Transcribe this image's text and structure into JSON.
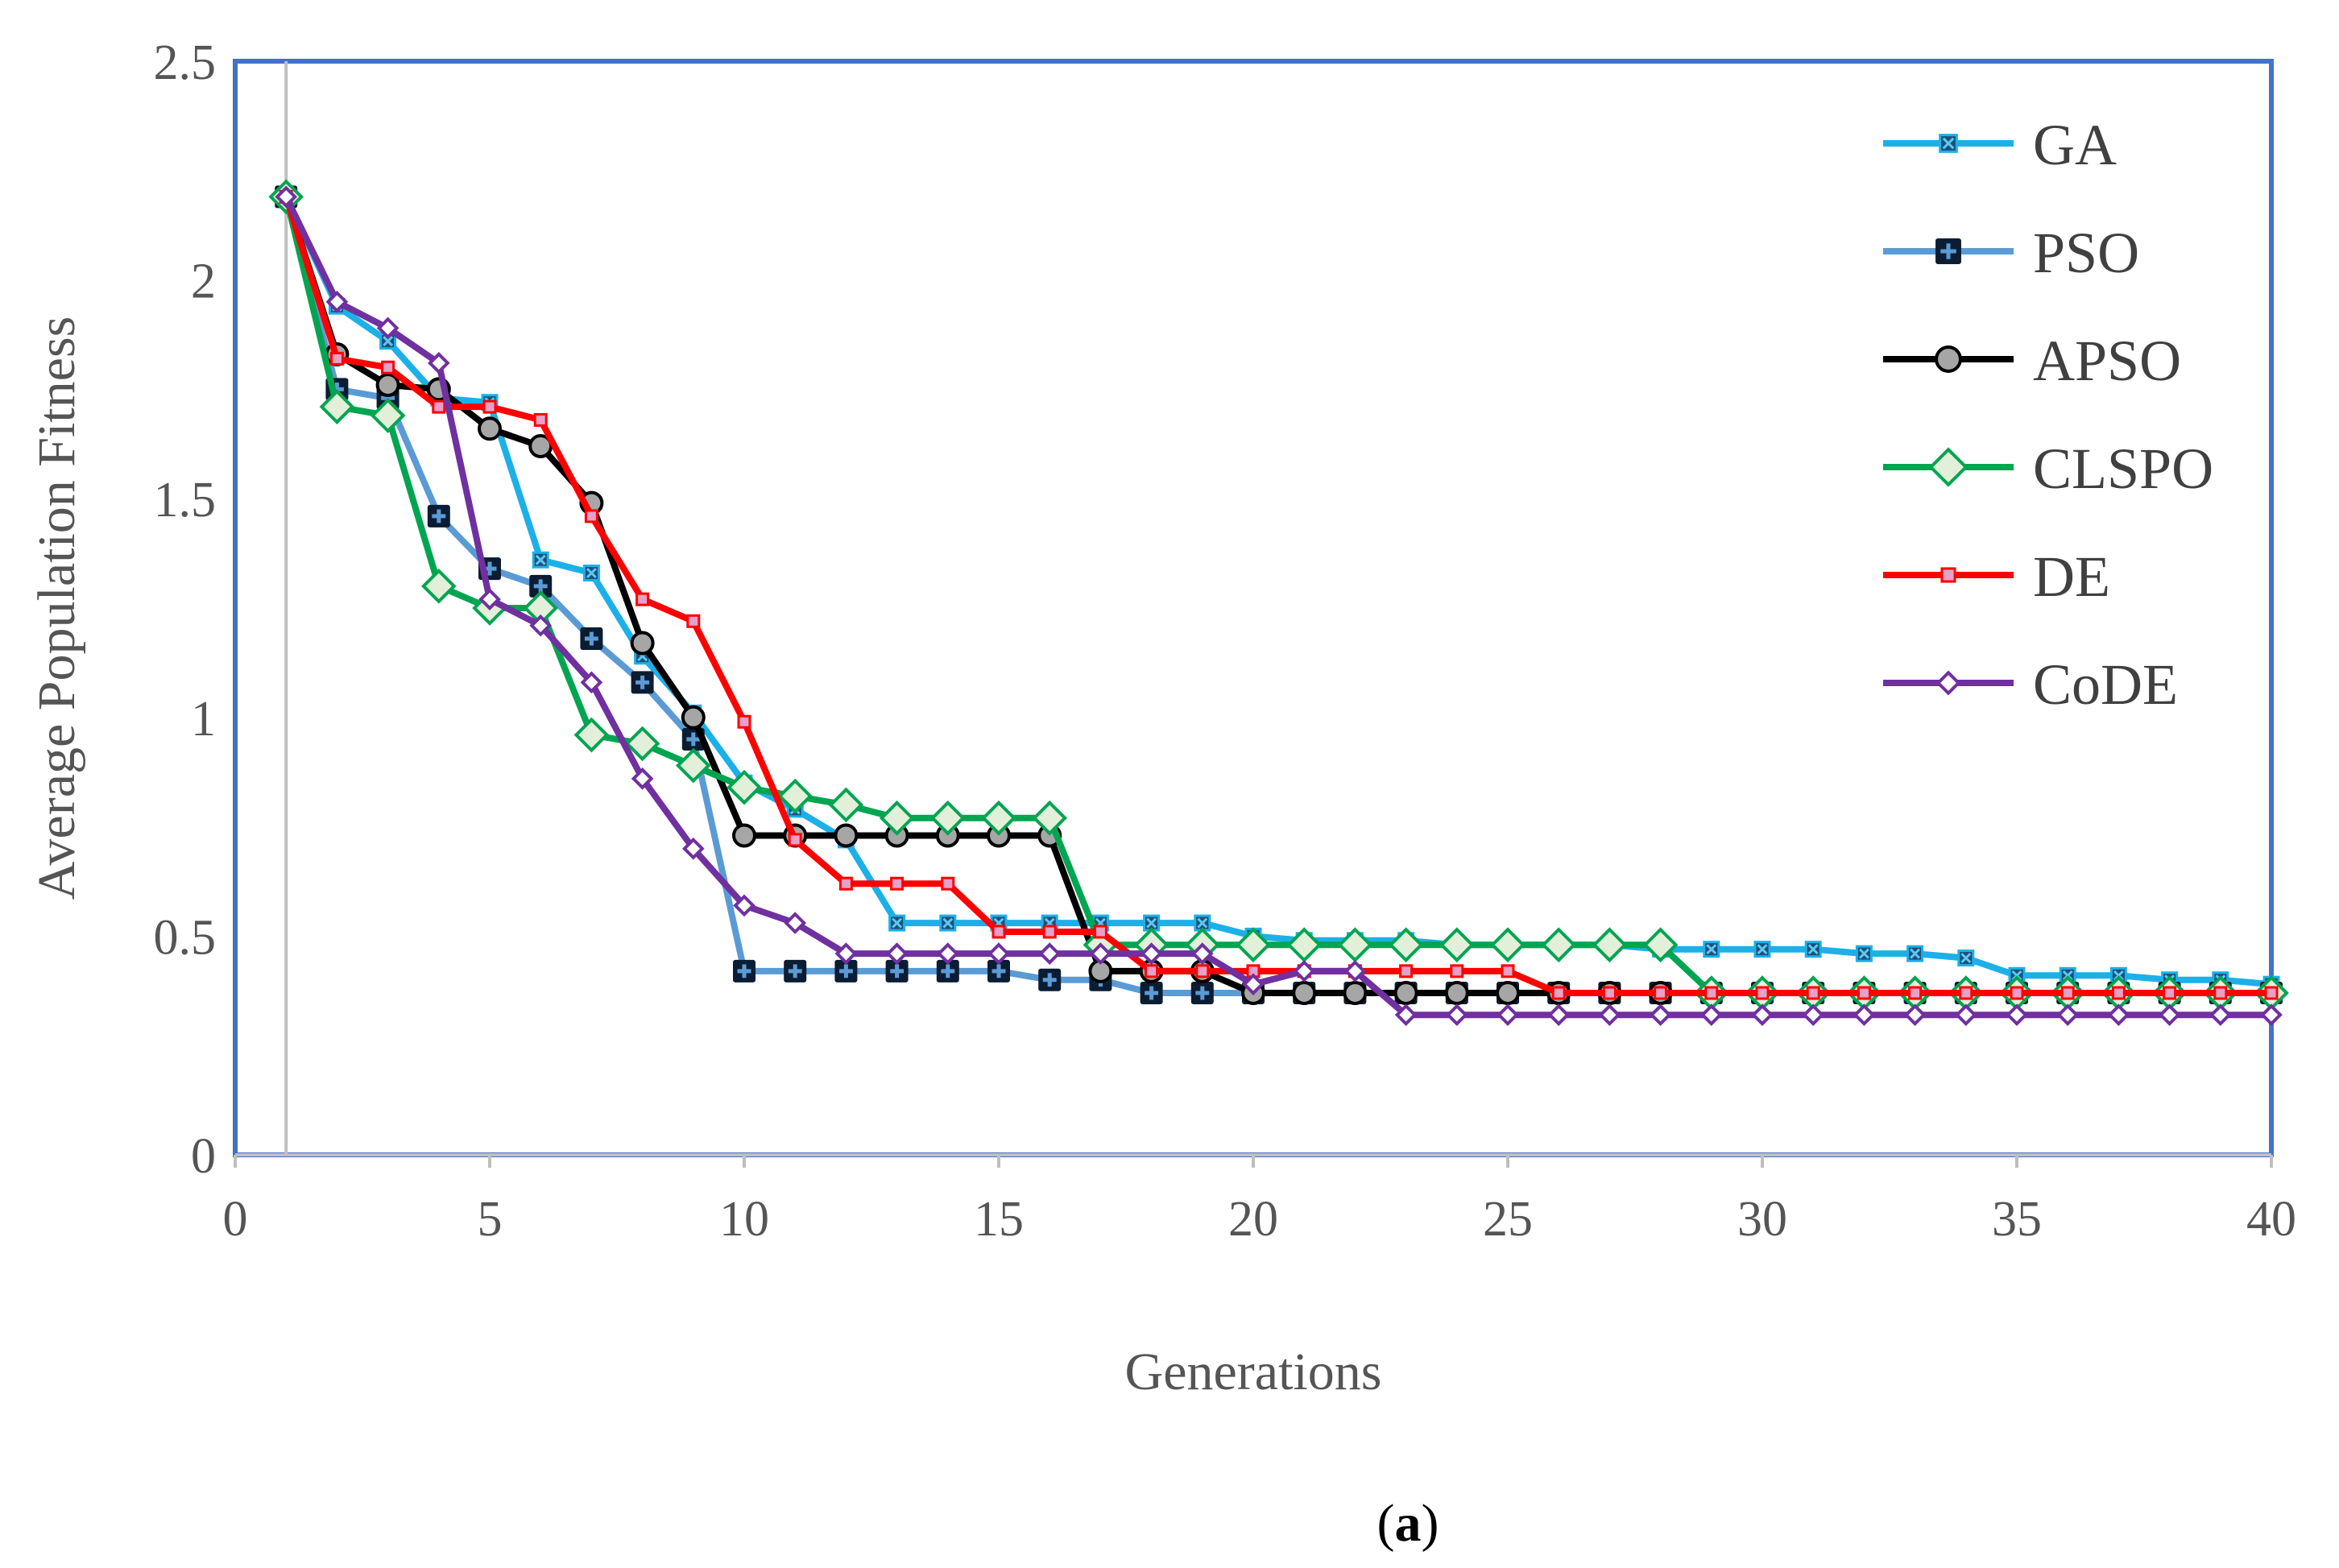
{
  "chart_data": {
    "type": "line",
    "title": "",
    "xlabel": "Generations",
    "ylabel": "Average Population Fitness",
    "xlim": [
      0,
      40
    ],
    "ylim": [
      0,
      2.5
    ],
    "xticks": [
      "0",
      "5",
      "10",
      "15",
      "20",
      "25",
      "30",
      "35",
      "40"
    ],
    "yticks": [
      "0",
      "0.5",
      "1",
      "1.5",
      "2",
      "2.5"
    ],
    "grid": false,
    "legend": "right",
    "caption_prefix": "(",
    "caption_letter": "a",
    "caption_suffix": ")",
    "x": [
      1,
      2,
      3,
      4,
      5,
      6,
      7,
      8,
      9,
      10,
      11,
      12,
      13,
      14,
      15,
      16,
      17,
      18,
      19,
      20,
      21,
      22,
      23,
      24,
      25,
      26,
      27,
      28,
      29,
      30,
      31,
      32,
      33,
      34,
      35,
      36,
      37,
      38,
      39,
      40
    ],
    "series": [
      {
        "name": "GA",
        "color": "#1CB0E8",
        "marker": "x-square",
        "values": [
          2.19,
          1.94,
          1.86,
          1.73,
          1.72,
          1.36,
          1.33,
          1.14,
          1.01,
          0.85,
          0.79,
          0.72,
          0.53,
          0.53,
          0.53,
          0.53,
          0.53,
          0.53,
          0.53,
          0.5,
          0.49,
          0.49,
          0.49,
          0.48,
          0.48,
          0.48,
          0.48,
          0.47,
          0.47,
          0.47,
          0.47,
          0.46,
          0.46,
          0.45,
          0.41,
          0.41,
          0.41,
          0.4,
          0.4,
          0.39
        ]
      },
      {
        "name": "PSO",
        "color": "#5B9BD5",
        "marker": "plus-square",
        "values": [
          2.19,
          1.75,
          1.73,
          1.46,
          1.34,
          1.3,
          1.18,
          1.08,
          0.95,
          0.42,
          0.42,
          0.42,
          0.42,
          0.42,
          0.42,
          0.4,
          0.4,
          0.37,
          0.37,
          0.37,
          0.37,
          0.37,
          0.37,
          0.37,
          0.37,
          0.37,
          0.37,
          0.37,
          0.37,
          0.37,
          0.37,
          0.37,
          0.37,
          0.37,
          0.37,
          0.37,
          0.37,
          0.37,
          0.37,
          0.37
        ]
      },
      {
        "name": "APSO",
        "color": "#000000",
        "marker": "circle",
        "values": [
          2.19,
          1.83,
          1.76,
          1.75,
          1.66,
          1.62,
          1.49,
          1.17,
          1.0,
          0.73,
          0.73,
          0.73,
          0.73,
          0.73,
          0.73,
          0.73,
          0.42,
          0.42,
          0.42,
          0.37,
          0.37,
          0.37,
          0.37,
          0.37,
          0.37,
          0.37,
          0.37,
          0.37,
          0.37,
          0.37,
          0.37,
          0.37,
          0.37,
          0.37,
          0.37,
          0.37,
          0.37,
          0.37,
          0.37,
          0.37
        ]
      },
      {
        "name": "CLSPO",
        "color": "#00A550",
        "marker": "diamond",
        "values": [
          2.19,
          1.71,
          1.69,
          1.3,
          1.25,
          1.25,
          0.96,
          0.94,
          0.89,
          0.84,
          0.82,
          0.8,
          0.77,
          0.77,
          0.77,
          0.77,
          0.48,
          0.48,
          0.48,
          0.48,
          0.48,
          0.48,
          0.48,
          0.48,
          0.48,
          0.48,
          0.48,
          0.48,
          0.37,
          0.37,
          0.37,
          0.37,
          0.37,
          0.37,
          0.37,
          0.37,
          0.37,
          0.37,
          0.37,
          0.37
        ]
      },
      {
        "name": "DE",
        "color": "#FF0000",
        "marker": "square",
        "values": [
          2.19,
          1.82,
          1.8,
          1.71,
          1.71,
          1.68,
          1.46,
          1.27,
          1.22,
          0.99,
          0.72,
          0.62,
          0.62,
          0.62,
          0.51,
          0.51,
          0.51,
          0.42,
          0.42,
          0.42,
          0.42,
          0.42,
          0.42,
          0.42,
          0.42,
          0.37,
          0.37,
          0.37,
          0.37,
          0.37,
          0.37,
          0.37,
          0.37,
          0.37,
          0.37,
          0.37,
          0.37,
          0.37,
          0.37,
          0.37
        ]
      },
      {
        "name": "CoDE",
        "color": "#7030A0",
        "marker": "diamond-small",
        "values": [
          2.19,
          1.95,
          1.89,
          1.81,
          1.27,
          1.21,
          1.08,
          0.86,
          0.7,
          0.57,
          0.53,
          0.46,
          0.46,
          0.46,
          0.46,
          0.46,
          0.46,
          0.46,
          0.46,
          0.39,
          0.42,
          0.42,
          0.32,
          0.32,
          0.32,
          0.32,
          0.32,
          0.32,
          0.32,
          0.32,
          0.32,
          0.32,
          0.32,
          0.32,
          0.32,
          0.32,
          0.32,
          0.32,
          0.32,
          0.32
        ]
      }
    ]
  }
}
